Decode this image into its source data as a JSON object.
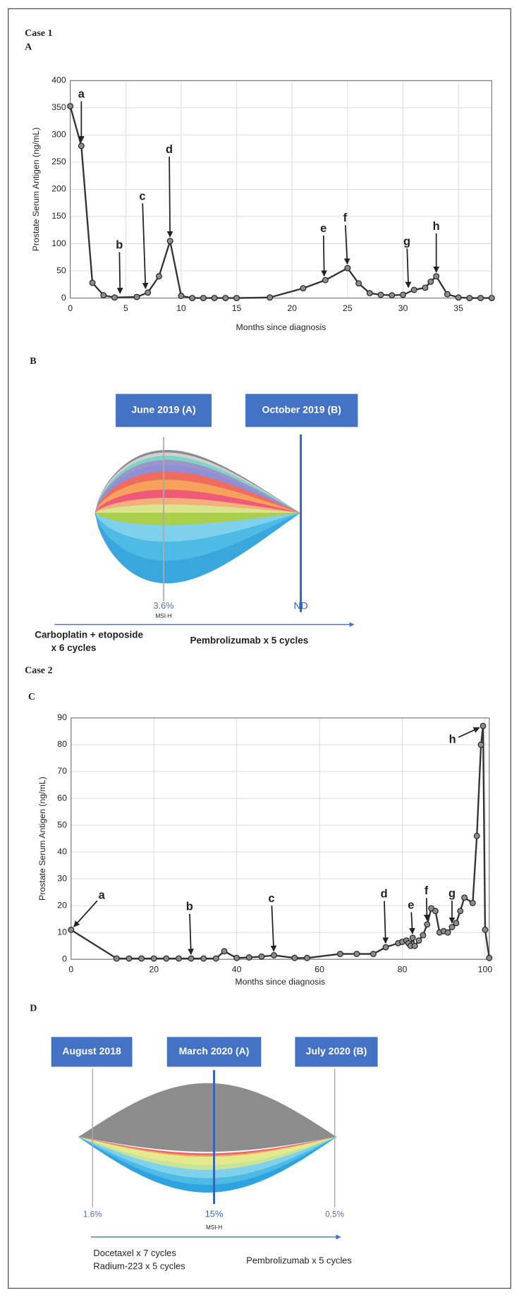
{
  "figure": {
    "case1": "Case 1",
    "panel_a": "A",
    "panel_b": "B",
    "case2": "Case 2",
    "panel_c": "C",
    "panel_d": "D"
  },
  "chart_data": [
    {
      "type": "line",
      "x_label": "Months since diagnosis",
      "y_label": "Prostate Serum Antigen (ng/mL)",
      "x": [
        0,
        1,
        2,
        3,
        4,
        6,
        7,
        8,
        9,
        10,
        11,
        12,
        13,
        14,
        15,
        18,
        21,
        23,
        25,
        26,
        27,
        28,
        29,
        30,
        31,
        32,
        32.5,
        33,
        34,
        35,
        36,
        37,
        38
      ],
      "values": [
        353,
        280,
        28,
        5,
        1,
        2,
        10,
        40,
        105,
        4,
        0,
        0,
        0,
        0,
        0,
        1,
        18,
        33,
        55,
        27,
        9,
        6,
        5,
        6,
        15,
        19,
        30,
        40,
        7,
        1,
        0,
        0,
        0
      ],
      "color": "#333333",
      "xlim": [
        0,
        38
      ],
      "xticks": [
        0,
        5,
        10,
        15,
        20,
        25,
        30,
        35
      ],
      "ylim": [
        0,
        400
      ],
      "yticks": [
        0,
        50,
        100,
        150,
        200,
        250,
        300,
        350,
        400
      ],
      "grid": true,
      "annotations": [
        {
          "text": "a",
          "x": 1,
          "y": 280
        },
        {
          "text": "b",
          "x": 4.5,
          "y": 1
        },
        {
          "text": "c",
          "x": 6.8,
          "y": 10
        },
        {
          "text": "d",
          "x": 9,
          "y": 105
        },
        {
          "text": "e",
          "x": 22.9,
          "y": 33
        },
        {
          "text": "f",
          "x": 25,
          "y": 55
        },
        {
          "text": "g",
          "x": 30.5,
          "y": 12
        },
        {
          "text": "h",
          "x": 33,
          "y": 40
        }
      ]
    },
    {
      "type": "line",
      "x_label": "Months since diagnosis",
      "y_label": "Prostate Serum Antigen (ng/mL)",
      "x": [
        0,
        11,
        14,
        17,
        20,
        23,
        26,
        29,
        32,
        35,
        37,
        40,
        43,
        46,
        49,
        54,
        57,
        65,
        69,
        73,
        76,
        79,
        80,
        81,
        81.5,
        82,
        82.5,
        83,
        84,
        85,
        86,
        87,
        88,
        89,
        90,
        91,
        92,
        93,
        94,
        95,
        97,
        98,
        99,
        99.5,
        100,
        101
      ],
      "values": [
        11,
        0.3,
        0.3,
        0.3,
        0.3,
        0.3,
        0.3,
        0.3,
        0.3,
        0.3,
        3,
        0.5,
        0.7,
        1,
        1.5,
        0.5,
        0.5,
        2,
        2,
        2,
        4.5,
        6,
        6.5,
        7,
        6,
        5,
        8,
        5,
        7,
        9,
        13,
        19,
        18,
        10,
        10.5,
        10,
        12,
        13.5,
        18,
        23,
        21,
        46,
        80,
        87,
        11,
        0.5
      ],
      "color": "#333333",
      "xlim": [
        0,
        101
      ],
      "xticks": [
        0,
        20,
        40,
        60,
        80,
        100
      ],
      "ylim": [
        0,
        90
      ],
      "yticks": [
        0,
        10,
        20,
        30,
        40,
        50,
        60,
        70,
        80,
        90
      ],
      "grid": true,
      "annotations": [
        {
          "text": "a",
          "x": 0,
          "y": 11
        },
        {
          "text": "b",
          "x": 29,
          "y": 0.3
        },
        {
          "text": "c",
          "x": 49,
          "y": 1.5
        },
        {
          "text": "d",
          "x": 76,
          "y": 4.5
        },
        {
          "text": "e",
          "x": 82.5,
          "y": 8
        },
        {
          "text": "f",
          "x": 86,
          "y": 13
        },
        {
          "text": "g",
          "x": 92,
          "y": 12
        },
        {
          "text": "h",
          "x": 99.5,
          "y": 87
        }
      ]
    }
  ],
  "fish_b": {
    "dates": [
      "June 2019 (A)",
      "October 2019 (B)"
    ],
    "fractions": [
      "3.6%",
      "ND"
    ],
    "msi": "MSI-H",
    "therapies": [
      "Carboplatin + etoposide",
      "x 6 cycles",
      "Pembrolizumab x 5 cycles"
    ]
  },
  "fish_d": {
    "dates": [
      "August 2018",
      "March 2020 (A)",
      "July 2020 (B)"
    ],
    "fractions": [
      "1.6%",
      "15%",
      "0.5%"
    ],
    "msi": "MSI-H",
    "therapies": [
      "Docetaxel x 7 cycles",
      "Radium-223 x 5 cycles",
      "Pembrolizumab x 5 cycles"
    ]
  }
}
